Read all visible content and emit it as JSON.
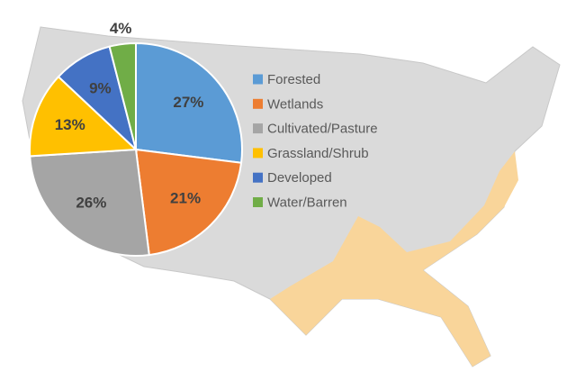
{
  "chart_data": {
    "type": "pie",
    "categories": [
      "Forested",
      "Wetlands",
      "Cultivated/Pasture",
      "Grassland/Shrub",
      "Developed",
      "Water/Barren"
    ],
    "values": [
      27,
      21,
      26,
      13,
      9,
      4
    ],
    "value_labels": [
      "27%",
      "21%",
      "26%",
      "13%",
      "9%",
      "4%"
    ],
    "colors": [
      "#5b9bd5",
      "#ed7d31",
      "#a5a5a5",
      "#ffc000",
      "#4472c4",
      "#70ad47"
    ],
    "legend": "right"
  }
}
